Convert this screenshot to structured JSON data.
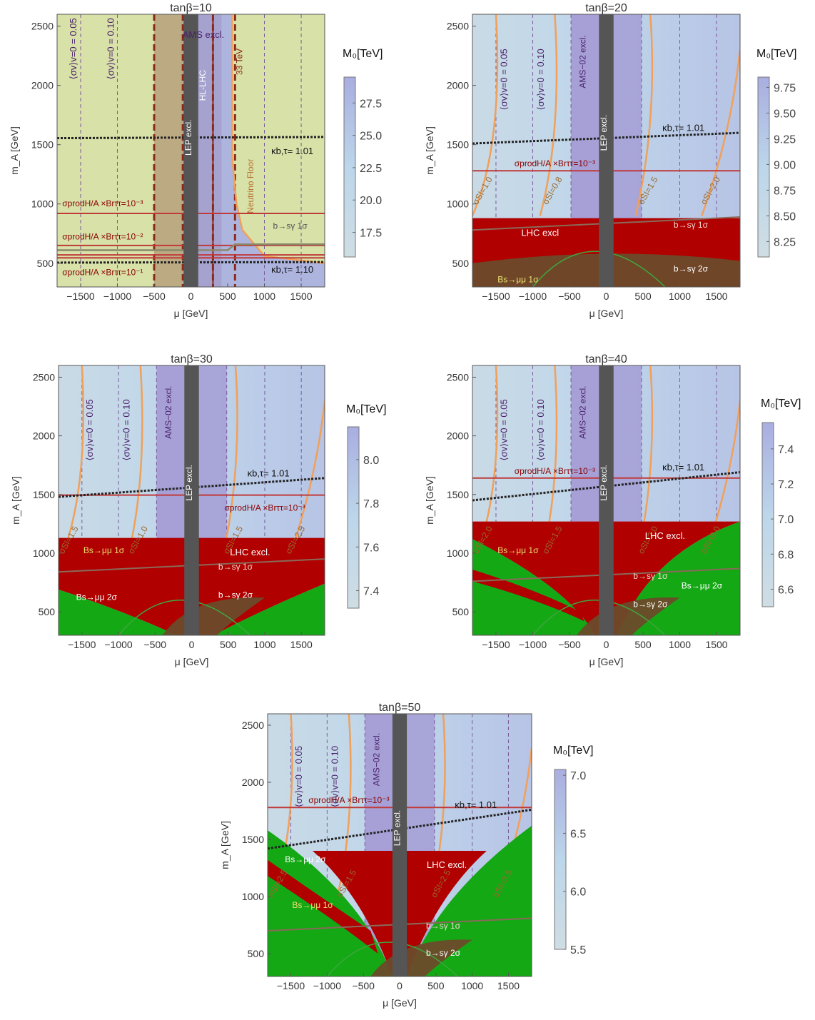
{
  "panels": [
    {
      "id": "p1",
      "title": "tanβ=10",
      "ylabel": "m_A [GeV]",
      "xlabel": "μ [GeV]",
      "colorbar": {
        "label": "M₀[TeV]",
        "ticks": [
          "27.5",
          "25.0",
          "22.5",
          "20.0",
          "17.5"
        ],
        "tick_values": [
          27.5,
          25.0,
          22.5,
          20.0,
          17.5
        ],
        "range": [
          15.6,
          29.5
        ]
      },
      "background": "#d7e1a8",
      "labels": {
        "sv005": "⟨σv⟩v=0 = 0.05",
        "sv010": "⟨σv⟩v=0 = 0.10",
        "ams": "AMS excl.",
        "hllhc": "HL-LHC",
        "lep": "LEP excl.",
        "tev33": "33 TeV",
        "neutrino": "Neutrino Floor",
        "kappa1": "κb,τ= 1.01",
        "kappa2": "κb,τ= 1.10",
        "sigma1": "σprodH/A ×Brττ=10⁻³",
        "sigma2": "σprodH/A ×Brττ=10⁻²",
        "sigma3": "σprodH/A ×Brττ=10⁻¹",
        "bsg1": "b→sγ 1σ"
      }
    },
    {
      "id": "p2",
      "title": "tanβ=20",
      "ylabel": "m_A [GeV]",
      "xlabel": "μ [GeV]",
      "colorbar": {
        "label": "M₀[TeV]",
        "ticks": [
          "9.75",
          "9.50",
          "9.25",
          "9.00",
          "8.75",
          "8.50",
          "8.25"
        ],
        "tick_values": [
          9.75,
          9.5,
          9.25,
          9.0,
          8.75,
          8.5,
          8.25
        ],
        "range": [
          8.1,
          9.85
        ]
      },
      "background": "#c9dcea",
      "labels": {
        "sv005": "⟨σv⟩v=0 = 0.05",
        "sv010": "⟨σv⟩v=0 = 0.10",
        "ams": "AMS−02 excl.",
        "lep": "LEP excl.",
        "kappa1": "κb,τ= 1.01",
        "sigma1": "σprodH/A ×Brττ=10⁻³",
        "si1": "σSI=1.0",
        "si2": "σSI=0.8",
        "si3": "σSI=1.5",
        "si4": "σSI=2.0",
        "lhc": "LHC excl",
        "bsg1": "b→sγ 1σ",
        "bsg2": "b→sγ 2σ",
        "bsmu1": "Bs→μμ 1σ"
      }
    },
    {
      "id": "p3",
      "title": "tanβ=30",
      "ylabel": "m_A [GeV]",
      "xlabel": "μ [GeV]",
      "colorbar": {
        "label": "M₀[TeV]",
        "ticks": [
          "8.0",
          "7.8",
          "7.6",
          "7.4"
        ],
        "tick_values": [
          8.0,
          7.8,
          7.6,
          7.4
        ],
        "range": [
          7.32,
          8.15
        ]
      },
      "background": "#c9dcea",
      "labels": {
        "sv005": "⟨σv⟩v=0 = 0.05",
        "sv010": "⟨σv⟩v=0 = 0.10",
        "ams": "AMS−02 excl.",
        "lep": "LEP excl.",
        "kappa1": "κb,τ= 1.01",
        "sigma1": "σprodH/A ×Brττ=10⁻³",
        "si1": "σSI=1.5",
        "si2": "σSI=1.0",
        "si3": "σSI=1.5",
        "si4": "σSI=2.5",
        "lhc": "LHC excl.",
        "bsg1": "b→sγ 1σ",
        "bsg2": "b→sγ 2σ",
        "bsmu1": "Bs→μμ 1σ",
        "bsmu2": "Bs→μμ 2σ"
      }
    },
    {
      "id": "p4",
      "title": "tanβ=40",
      "ylabel": "m_A [GeV]",
      "xlabel": "μ [GeV]",
      "colorbar": {
        "label": "M₀[TeV]",
        "ticks": [
          "7.4",
          "7.2",
          "7.0",
          "6.8",
          "6.6"
        ],
        "tick_values": [
          7.4,
          7.2,
          7.0,
          6.8,
          6.6
        ],
        "range": [
          6.5,
          7.55
        ]
      },
      "background": "#c9dcea",
      "labels": {
        "sv005": "⟨σv⟩v=0 = 0.05",
        "sv010": "⟨σv⟩v=0 = 0.10",
        "ams": "AMS−02 excl.",
        "lep": "LEP excl.",
        "kappa1": "κb,τ= 1.01",
        "sigma1": "σprodH/A ×Brττ=10⁻³",
        "si1": "σSI=2.0",
        "si2": "σSI=1.5",
        "si3": "σSI=2.0",
        "si4": "σSI=3.0",
        "lhc": "LHC excl.",
        "bsg1": "b→sγ 1σ",
        "bsg2": "b→sγ 2σ",
        "bsmu1": "Bs→μμ 1σ",
        "bsmu2": "Bs→μμ 2σ"
      }
    },
    {
      "id": "p5",
      "title": "tanβ=50",
      "ylabel": "m_A [GeV]",
      "xlabel": "μ [GeV]",
      "colorbar": {
        "label": "M₀[TeV]",
        "ticks": [
          "7.0",
          "6.5",
          "6.0",
          "5.5"
        ],
        "tick_values": [
          7.0,
          6.5,
          6.0,
          5.5
        ],
        "range": [
          5.5,
          7.05
        ]
      },
      "background": "#c9dcea",
      "labels": {
        "sv005": "⟨σv⟩v=0 = 0.05",
        "sv010": "⟨σv⟩v=0 = 0.10",
        "ams": "AMS−02 excl.",
        "lep": "LEP excl.",
        "kappa1": "κb,τ= 1.01",
        "sigma1": "σprodH/A ×Brττ=10⁻³",
        "si1": "σSI=2.5",
        "si2": "σSI=1.5",
        "si3": "σSI=2.5",
        "si4": "σSI=3.5",
        "lhc": "LHC excl.",
        "bsg1": "b→sγ 1σ",
        "bsg2": "b→sγ 2σ",
        "bsmu1": "Bs→μμ 1σ",
        "bsmu2": "Bs→μμ 2σ"
      }
    }
  ],
  "axes": {
    "x_ticks": [
      -1500,
      -1000,
      -500,
      0,
      500,
      1000,
      1500
    ],
    "x_tick_labels": [
      "−1500",
      "−1000",
      "−500",
      "0",
      "500",
      "1000",
      "1500"
    ],
    "y_ticks": [
      500,
      1000,
      1500,
      2000,
      2500
    ],
    "y_tick_labels": [
      "500",
      "1000",
      "1500",
      "2000",
      "2500"
    ],
    "xlim": [
      -1820,
      1820
    ],
    "ylim": [
      300,
      2600
    ]
  },
  "chart_data": [
    {
      "type": "heatmap",
      "title": "tanβ=10",
      "xlabel": "μ [GeV]",
      "ylabel": "m_A [GeV]",
      "xlim": [
        -1820,
        1820
      ],
      "ylim": [
        300,
        2600
      ],
      "colorbar_label": "M₀[TeV]",
      "colorbar_range": [
        15.6,
        29.5
      ],
      "lines": [
        {
          "name": "κb,τ= 1.01",
          "y": [
            1555,
            1565
          ]
        },
        {
          "name": "κb,τ= 1.10",
          "y": [
            505,
            510
          ]
        },
        {
          "name": "σprodH/A ×Brττ=10⁻³",
          "y": 920
        },
        {
          "name": "σprodH/A ×Brττ=10⁻²",
          "y": 650
        },
        {
          "name": "σprodH/A ×Brττ=10⁻¹",
          "y": 545
        }
      ],
      "bands": [
        {
          "name": "AMS excl.",
          "x": [
            -80,
            420
          ]
        },
        {
          "name": "LEP excl.",
          "x": [
            -100,
            100
          ]
        },
        {
          "name": "33 TeV",
          "x": 600
        },
        {
          "name": "HL-LHC",
          "x": [
            -500,
            -110
          ]
        }
      ]
    },
    {
      "type": "heatmap",
      "title": "tanβ=20",
      "xlabel": "μ [GeV]",
      "ylabel": "m_A [GeV]",
      "xlim": [
        -1820,
        1820
      ],
      "ylim": [
        300,
        2600
      ],
      "colorbar_label": "M₀[TeV]",
      "colorbar_range": [
        8.1,
        9.85
      ],
      "regions": [
        {
          "name": "LHC excl",
          "y_max": 880
        },
        {
          "name": "b→sγ 2σ",
          "y_max": 500
        }
      ],
      "lines": [
        {
          "name": "κb,τ= 1.01",
          "y": [
            1510,
            1600
          ]
        },
        {
          "name": "σprodH/A ×Brττ=10⁻³",
          "y": 1280
        }
      ],
      "bands": [
        {
          "name": "AMS−02 excl.",
          "x": [
            -480,
            -100
          ]
        },
        {
          "name": "LEP excl.",
          "x": [
            -100,
            100
          ]
        }
      ]
    },
    {
      "type": "heatmap",
      "title": "tanβ=30",
      "xlabel": "μ [GeV]",
      "ylabel": "m_A [GeV]",
      "xlim": [
        -1820,
        1820
      ],
      "ylim": [
        300,
        2600
      ],
      "colorbar_label": "M₀[TeV]",
      "colorbar_range": [
        7.32,
        8.15
      ],
      "regions": [
        {
          "name": "LHC excl.",
          "y_max": 1130
        }
      ],
      "lines": [
        {
          "name": "κb,τ= 1.01",
          "y": [
            1480,
            1640
          ]
        },
        {
          "name": "σprodH/A ×Brττ=10⁻³",
          "y": 1495
        }
      ],
      "bands": [
        {
          "name": "AMS−02 excl.",
          "x": [
            -480,
            -100
          ]
        },
        {
          "name": "LEP excl.",
          "x": [
            -100,
            100
          ]
        }
      ]
    },
    {
      "type": "heatmap",
      "title": "tanβ=40",
      "xlabel": "μ [GeV]",
      "ylabel": "m_A [GeV]",
      "xlim": [
        -1820,
        1820
      ],
      "ylim": [
        300,
        2600
      ],
      "colorbar_label": "M₀[TeV]",
      "colorbar_range": [
        6.5,
        7.55
      ],
      "regions": [
        {
          "name": "LHC excl.",
          "y_max": 1270
        }
      ],
      "lines": [
        {
          "name": "κb,τ= 1.01",
          "y": [
            1450,
            1690
          ]
        },
        {
          "name": "σprodH/A ×Brττ=10⁻³",
          "y": 1640
        }
      ],
      "bands": [
        {
          "name": "AMS−02 excl.",
          "x": [
            -480,
            -100
          ]
        },
        {
          "name": "LEP excl.",
          "x": [
            -100,
            100
          ]
        }
      ]
    },
    {
      "type": "heatmap",
      "title": "tanβ=50",
      "xlabel": "μ [GeV]",
      "ylabel": "m_A [GeV]",
      "xlim": [
        -1820,
        1820
      ],
      "ylim": [
        300,
        2600
      ],
      "colorbar_label": "M₀[TeV]",
      "colorbar_range": [
        5.5,
        7.05
      ],
      "regions": [
        {
          "name": "LHC excl.",
          "y_max": 1400
        }
      ],
      "lines": [
        {
          "name": "κb,τ= 1.01",
          "y": [
            1420,
            1760
          ]
        },
        {
          "name": "σprodH/A ×Brττ=10⁻³",
          "y": 1780
        }
      ],
      "bands": [
        {
          "name": "AMS−02 excl.",
          "x": [
            -480,
            -100
          ]
        },
        {
          "name": "LEP excl.",
          "x": [
            -100,
            100
          ]
        }
      ]
    }
  ],
  "colors": {
    "red_region": "#b00000",
    "brown_region": "#6b4a2a",
    "green_region": "#14a814",
    "lep_band": "#555555",
    "ams_band": "#8c7fc4",
    "orange_contour": "#f0a05a",
    "sigma_line": "#c03a3a",
    "kappa_line": "#222222",
    "purple_text": "#4b1f6b",
    "darkred_text": "#8b0000",
    "gray_line": "#8a8a6a"
  }
}
